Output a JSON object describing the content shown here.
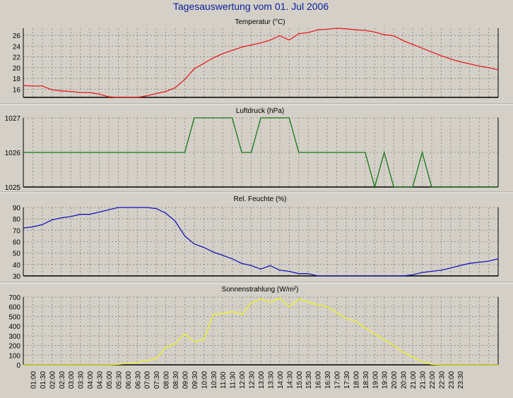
{
  "page_title": "Tagesauswertung vom 01. Jul 2006",
  "colors": {
    "background": "#d4d0c8",
    "plot_background": "#d4d0c8",
    "grid": "#808080",
    "title": "#0a1f9a",
    "temperature": "#e41c1c",
    "pressure": "#117711",
    "humidity": "#1515b5",
    "radiation": "#f2f21a"
  },
  "chart_data": [
    {
      "type": "line",
      "title": "Temperatur (°C)",
      "ylim": [
        14.5,
        27.3
      ],
      "yticks": [
        16,
        18,
        20,
        22,
        24,
        26
      ],
      "grid": true,
      "color_key": "temperature",
      "series": [
        {
          "values": [
            16.7,
            16.6,
            16.6,
            15.9,
            15.7,
            15.6,
            15.4,
            15.4,
            15.1,
            14.6,
            14.4,
            14.4,
            14.5,
            14.8,
            15.2,
            15.6,
            16.3,
            17.8,
            19.8,
            20.8,
            21.8,
            22.6,
            23.2,
            23.8,
            24.2,
            24.6,
            25.1,
            25.9,
            25.1,
            26.3,
            26.5,
            27.0,
            27.1,
            27.3,
            27.2,
            27.0,
            26.9,
            26.6,
            26.1,
            25.9,
            25.0,
            24.3,
            23.6,
            22.9,
            22.2,
            21.6,
            21.1,
            20.7,
            20.3,
            20.0,
            19.6
          ]
        }
      ]
    },
    {
      "type": "line",
      "title": "Luftdruck (hPa)",
      "ylim": [
        1025,
        1027
      ],
      "yticks": [
        1025,
        1026,
        1027
      ],
      "grid": true,
      "color_key": "pressure",
      "series": [
        {
          "values": [
            1026,
            1026,
            1026,
            1026,
            1026,
            1026,
            1026,
            1026,
            1026,
            1026,
            1026,
            1026,
            1026,
            1026,
            1026,
            1026,
            1026,
            1026,
            1027,
            1027,
            1027,
            1027,
            1027,
            1026,
            1026,
            1027,
            1027,
            1027,
            1027,
            1026,
            1026,
            1026,
            1026,
            1026,
            1026,
            1026,
            1026,
            1025,
            1026,
            1025,
            1025,
            1025,
            1026,
            1025,
            1025,
            1025,
            1025,
            1025,
            1025,
            1025,
            1025
          ]
        }
      ]
    },
    {
      "type": "line",
      "title": "Rel. Feuchte (%)",
      "ylim": [
        30,
        90
      ],
      "yticks": [
        30,
        40,
        50,
        60,
        70,
        80,
        90
      ],
      "grid": true,
      "color_key": "humidity",
      "series": [
        {
          "values": [
            72,
            73,
            75,
            79,
            81,
            82,
            84,
            84,
            86,
            88,
            90,
            91,
            91,
            90,
            89,
            85,
            78,
            65,
            58,
            55,
            51,
            48,
            45,
            41,
            39,
            36,
            39,
            35,
            34,
            32,
            32,
            30,
            30,
            30,
            30,
            29,
            29,
            29,
            28,
            29,
            29,
            31,
            33,
            34,
            35,
            37,
            39,
            41,
            42,
            43,
            45
          ]
        }
      ]
    },
    {
      "type": "line",
      "title": "Sonnenstrahlung (W/m²)",
      "ylim": [
        0,
        700
      ],
      "yticks": [
        0,
        100,
        200,
        300,
        400,
        500,
        600,
        700
      ],
      "grid": true,
      "color_key": "radiation",
      "series": [
        {
          "values": [
            0,
            0,
            0,
            0,
            0,
            0,
            0,
            0,
            0,
            0,
            5,
            15,
            25,
            40,
            65,
            180,
            220,
            320,
            240,
            260,
            520,
            530,
            550,
            520,
            640,
            680,
            650,
            690,
            600,
            680,
            650,
            620,
            600,
            540,
            480,
            450,
            380,
            320,
            260,
            200,
            130,
            80,
            35,
            5,
            0,
            0,
            0,
            0,
            0,
            0,
            0
          ]
        }
      ]
    }
  ],
  "x_tick_labels": [
    "01:00",
    "01:30",
    "02:00",
    "02:30",
    "03:00",
    "03:30",
    "04:00",
    "04:30",
    "05:00",
    "05:30",
    "06:00",
    "06:30",
    "07:00",
    "07:30",
    "08:00",
    "08:30",
    "09:00",
    "09:30",
    "10:00",
    "10:30",
    "11:00",
    "11:30",
    "12:00",
    "12:30",
    "13:00",
    "13:30",
    "14:00",
    "14:30",
    "15:00",
    "15:30",
    "16:00",
    "16:30",
    "17:00",
    "17:30",
    "18:00",
    "18:30",
    "19:00",
    "19:30",
    "20:00",
    "20:30",
    "21:00",
    "21:30",
    "22:00",
    "22:30",
    "23:00",
    "23:30"
  ]
}
